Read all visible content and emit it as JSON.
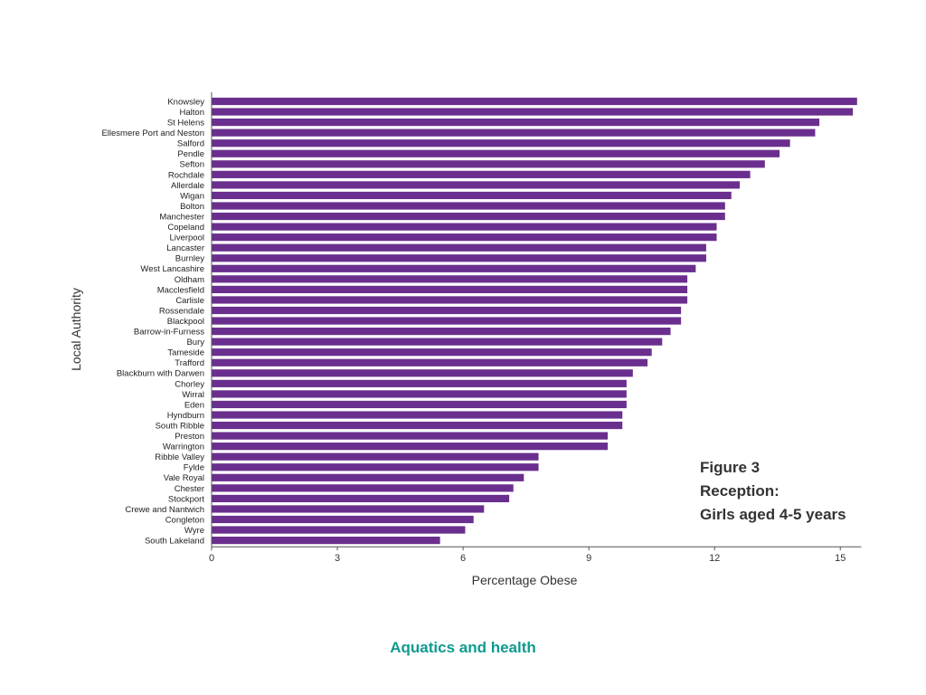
{
  "colors": {
    "bar": "#6a2f8e",
    "axis": "#555555",
    "footer": "#0f9a8f"
  },
  "chart_data": {
    "type": "bar",
    "orientation": "horizontal",
    "categories": [
      "Knowsley",
      "Halton",
      "St Helens",
      "Ellesmere Port and Neston",
      "Salford",
      "Pendle",
      "Sefton",
      "Rochdale",
      "Allerdale",
      "Wigan",
      "Bolton",
      "Manchester",
      "Copeland",
      "Liverpool",
      "Lancaster",
      "Burnley",
      "West Lancashire",
      "Oldham",
      "Macclesfield",
      "Carlisle",
      "Rossendale",
      "Blackpool",
      "Barrow-in-Furness",
      "Bury",
      "Tameside",
      "Trafford",
      "Blackburn with Darwen",
      "Chorley",
      "Wirral",
      "Eden",
      "Hyndburn",
      "South Ribble",
      "Preston",
      "Warrington",
      "Ribble Valley",
      "Fylde",
      "Vale Royal",
      "Chester",
      "Stockport",
      "Crewe and Nantwich",
      "Congleton",
      "Wyre",
      "South Lakeland"
    ],
    "values": [
      15.4,
      15.3,
      14.5,
      14.4,
      13.8,
      13.55,
      13.2,
      12.85,
      12.6,
      12.4,
      12.25,
      12.25,
      12.05,
      12.05,
      11.8,
      11.8,
      11.55,
      11.35,
      11.35,
      11.35,
      11.2,
      11.2,
      10.95,
      10.75,
      10.5,
      10.4,
      10.05,
      9.9,
      9.9,
      9.9,
      9.8,
      9.8,
      9.45,
      9.45,
      7.8,
      7.8,
      7.45,
      7.2,
      7.1,
      6.5,
      6.25,
      6.05,
      5.45
    ],
    "xlabel": "Percentage Obese",
    "ylabel": "Local Authority",
    "xlim": [
      0,
      15.5
    ],
    "xticks": [
      0,
      3,
      6,
      9,
      12,
      15
    ],
    "grid": false,
    "annotation": [
      "Figure 3",
      "Reception:",
      "Girls aged 4-5 years"
    ]
  },
  "footer": {
    "text": "Aquatics and health"
  }
}
